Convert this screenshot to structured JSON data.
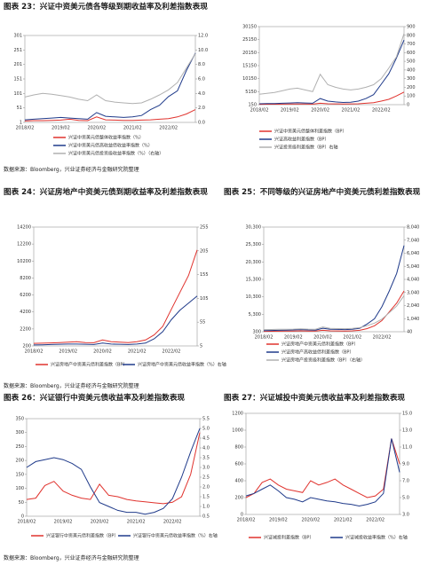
{
  "sources": [
    "数据来源：Bloomberg，兴业证券经济与金融研究院整理",
    "数据来源：Bloomberg，兴业证券经济与金融研究院整理",
    "数据来源：Bloomberg，兴业证券经济与金融研究院整理"
  ],
  "chart_data": [
    {
      "type": "line",
      "title": "图表 23：兴证中资美元债各等级到期收益率及利差指数表现",
      "categories": [
        "2018/02",
        null,
        null,
        null,
        "2019/02",
        null,
        null,
        null,
        "2020/02",
        null,
        null,
        null,
        "2021/02",
        null,
        null,
        null,
        "2022/02",
        null,
        null,
        null
      ],
      "ylim": [
        1,
        301
      ],
      "yticks": [
        1,
        51,
        101,
        151,
        201,
        251,
        301
      ],
      "y2lim": [
        0,
        12
      ],
      "y2ticks": [
        {
          "value": 0,
          "label": "0.0"
        },
        {
          "value": 2,
          "label": "2.0"
        },
        {
          "value": 4,
          "label": "4.0"
        },
        {
          "value": 6,
          "label": "6.0"
        },
        {
          "value": 8,
          "label": "8.0"
        },
        {
          "value": 10,
          "label": "10.0"
        },
        {
          "value": 12,
          "label": "12.0"
        }
      ],
      "series": [
        {
          "name": "兴证中资美元债整体收益率指数（%）",
          "color": "#e0322d",
          "values": [
            6,
            7,
            7,
            8,
            9,
            12,
            8,
            7,
            20,
            10,
            9,
            8,
            8,
            9,
            10,
            12,
            14,
            20,
            30,
            45
          ]
        },
        {
          "name": "兴证中资美元债高收益债收益率指数（%）",
          "color": "#1f3a8a",
          "values": [
            10,
            12,
            14,
            16,
            18,
            16,
            14,
            12,
            35,
            22,
            20,
            18,
            20,
            25,
            45,
            60,
            90,
            110,
            180,
            240
          ]
        },
        {
          "name": "兴证中资美元债投资级收益率指数（%）（右轴）",
          "color": "#b0b0b0",
          "axis": "y2",
          "values": [
            3.5,
            3.8,
            4.0,
            3.9,
            3.7,
            3.5,
            3.2,
            3.0,
            3.8,
            3.0,
            2.8,
            2.7,
            2.6,
            2.7,
            3.2,
            3.8,
            4.5,
            5.5,
            7.5,
            9.5
          ]
        }
      ]
    },
    {
      "type": "line",
      "categories": [
        "2018/02",
        null,
        null,
        null,
        "2019/02",
        null,
        null,
        null,
        "2020/02",
        null,
        null,
        null,
        "2021/02",
        null,
        null,
        null,
        "2022/02",
        null,
        null,
        null
      ],
      "ylim": [
        150,
        30150
      ],
      "yticks": [
        150,
        5150,
        10150,
        15150,
        20150,
        25150,
        30150
      ],
      "y2lim": [
        0,
        900
      ],
      "y2ticks": [
        0,
        100,
        200,
        300,
        400,
        500,
        600,
        700,
        800,
        900
      ],
      "series": [
        {
          "name": "兴证中资美元债整体利差指数（BP）",
          "color": "#e0322d",
          "values": [
            300,
            310,
            320,
            340,
            380,
            400,
            380,
            350,
            700,
            500,
            450,
            420,
            450,
            500,
            700,
            900,
            1500,
            2200,
            3500,
            5000
          ]
        },
        {
          "name": "兴证高收益利差指数（BP）",
          "color": "#1f3a8a",
          "values": [
            500,
            550,
            600,
            700,
            800,
            900,
            800,
            700,
            2500,
            1500,
            1200,
            1000,
            1100,
            1500,
            2500,
            4000,
            8000,
            12000,
            18000,
            25000
          ]
        },
        {
          "name": "兴证投资级利差指数（BP）右轴",
          "color": "#b0b0b0",
          "axis": "y2",
          "values": [
            120,
            130,
            140,
            160,
            180,
            190,
            170,
            150,
            350,
            230,
            200,
            180,
            170,
            180,
            200,
            230,
            300,
            420,
            550,
            820
          ]
        }
      ]
    },
    {
      "type": "line",
      "title": "图表 24：兴证房地产中资美元债到期收益率及利差指数表现",
      "categories": [
        "2018/02",
        null,
        null,
        null,
        "2019/02",
        null,
        null,
        null,
        "2020/02",
        null,
        null,
        null,
        "2021/02",
        null,
        null,
        null,
        "2022/02",
        null,
        null,
        null
      ],
      "ylim": [
        200,
        14200
      ],
      "yticks": [
        200,
        2200,
        4200,
        6200,
        8200,
        10200,
        12200,
        14200
      ],
      "y2lim": [
        5,
        255
      ],
      "y2ticks": [
        5,
        55,
        105,
        155,
        205,
        255
      ],
      "series": [
        {
          "name": "兴证房地产中资美元债利差指数（BP）",
          "color": "#e0322d",
          "values": [
            500,
            520,
            550,
            600,
            650,
            700,
            600,
            580,
            900,
            700,
            650,
            600,
            700,
            900,
            1500,
            2500,
            4500,
            6500,
            8500,
            11500
          ]
        },
        {
          "name": "兴证房地产中资美元债收益率指数（%）右轴",
          "color": "#1f3a8a",
          "axis": "y2",
          "values": [
            7,
            7.5,
            8,
            8.5,
            9,
            9,
            8.5,
            8,
            11,
            9,
            8.5,
            8,
            9,
            11,
            20,
            35,
            60,
            80,
            95,
            110
          ]
        }
      ]
    },
    {
      "type": "line",
      "title": "图表 25：不同等级的兴证房地产中资美元债利差指数表现",
      "categories": [
        "2018/02",
        null,
        null,
        null,
        "2019/02",
        null,
        null,
        null,
        "2020/02",
        null,
        null,
        null,
        "2021/02",
        null,
        null,
        null,
        "2022/02",
        null,
        null,
        null
      ],
      "ylim": [
        300,
        30300
      ],
      "yticks": [
        300,
        {
          "value": 5300,
          "label": "5,300"
        },
        {
          "value": 10300,
          "label": "10,300"
        },
        {
          "value": 15300,
          "label": "15,300"
        },
        {
          "value": 20300,
          "label": "20,300"
        },
        {
          "value": 25300,
          "label": "25,300"
        },
        {
          "value": 30300,
          "label": "30,300"
        }
      ],
      "y2lim": [
        40,
        8040
      ],
      "y2ticks": [
        40,
        {
          "value": 1040,
          "label": "1,040"
        },
        {
          "value": 2040,
          "label": "2,040"
        },
        {
          "value": 3040,
          "label": "3,040"
        },
        {
          "value": 4040,
          "label": "4,040"
        },
        {
          "value": 5040,
          "label": "5,040"
        },
        {
          "value": 6040,
          "label": "6,040"
        },
        {
          "value": 7040,
          "label": "7,040"
        },
        {
          "value": 8040,
          "label": "8,040"
        }
      ],
      "series": [
        {
          "name": "兴证房地产中资美元债利差指数（BP）",
          "color": "#e0322d",
          "values": [
            400,
            420,
            450,
            480,
            500,
            550,
            500,
            480,
            700,
            560,
            520,
            500,
            560,
            700,
            1200,
            2000,
            3500,
            6000,
            8500,
            12000
          ]
        },
        {
          "name": "兴证房地产高收益债利差指数（BP）",
          "color": "#1f3a8a",
          "values": [
            600,
            650,
            700,
            750,
            800,
            900,
            800,
            750,
            1300,
            1000,
            950,
            900,
            1000,
            1300,
            2500,
            4000,
            7500,
            12000,
            17000,
            25000
          ]
        },
        {
          "name": "兴证房地产投资级利差指数（BP）（右轴）",
          "color": "#b0b0b0",
          "axis": "y2",
          "values": [
            200,
            210,
            220,
            230,
            240,
            260,
            240,
            230,
            400,
            300,
            280,
            270,
            300,
            350,
            500,
            700,
            1000,
            1500,
            2000,
            2800
          ]
        }
      ]
    },
    {
      "type": "line",
      "title": "图表 26：兴证银行中资美元债收益率及利差指数表现",
      "categories": [
        "2018/02",
        null,
        null,
        null,
        "2019/02",
        null,
        null,
        null,
        "2020/02",
        null,
        null,
        null,
        "2021/02",
        null,
        null,
        null,
        "2022/02",
        null,
        null,
        null
      ],
      "ylim": [
        0,
        350
      ],
      "yticks": [
        0,
        50,
        100,
        150,
        200,
        250,
        300,
        350
      ],
      "y2lim": [
        0.5,
        5.5
      ],
      "y2ticks": [
        0.5,
        {
          "value": 1,
          "label": "1.0"
        },
        1.5,
        {
          "value": 2,
          "label": "2.0"
        },
        2.5,
        {
          "value": 3,
          "label": "3.0"
        },
        3.5,
        {
          "value": 4,
          "label": "4.0"
        },
        4.5,
        {
          "value": 5,
          "label": "5.0"
        },
        5.5
      ],
      "series": [
        {
          "name": "兴证银行中资美元债利差指数（BP）",
          "color": "#e0322d",
          "values": [
            60,
            65,
            110,
            125,
            90,
            75,
            65,
            60,
            115,
            75,
            70,
            60,
            55,
            52,
            48,
            45,
            50,
            70,
            150,
            300
          ]
        },
        {
          "name": "兴证银行中资美元债收益率指数（%）右轴",
          "color": "#1f3a8a",
          "axis": "y2",
          "values": [
            3.0,
            3.3,
            3.4,
            3.5,
            3.4,
            3.2,
            2.9,
            2.0,
            1.2,
            1.0,
            0.8,
            0.7,
            0.7,
            0.6,
            0.7,
            0.9,
            1.4,
            2.5,
            3.8,
            5.0
          ]
        }
      ]
    },
    {
      "type": "line",
      "title": "图表 27：兴证城投中资美元债收益率及利差指数表现",
      "categories": [
        "2018/02",
        null,
        null,
        null,
        "2019/02",
        null,
        null,
        null,
        "2020/02",
        null,
        null,
        null,
        "2021/02",
        null,
        null,
        null,
        "2022/02",
        null,
        null,
        null
      ],
      "ylim": [
        0,
        1200
      ],
      "yticks": [
        0,
        200,
        400,
        600,
        800,
        1000,
        1200
      ],
      "y2lim": [
        3,
        15
      ],
      "y2ticks": [
        {
          "value": 3,
          "label": "3.0"
        },
        {
          "value": 5,
          "label": "5.0"
        },
        {
          "value": 7,
          "label": "7.0"
        },
        {
          "value": 9,
          "label": "9.0"
        },
        {
          "value": 11,
          "label": "11.0"
        },
        {
          "value": 13,
          "label": "13.0"
        },
        {
          "value": 15,
          "label": "15.0"
        }
      ],
      "series": [
        {
          "name": "兴证城投利差指数（BP）",
          "color": "#e0322d",
          "values": [
            200,
            250,
            380,
            420,
            350,
            300,
            280,
            260,
            400,
            350,
            380,
            420,
            350,
            300,
            250,
            200,
            220,
            300,
            900,
            600
          ]
        },
        {
          "name": "兴证城投收益率指数（%）右轴",
          "color": "#1f3a8a",
          "axis": "y2",
          "values": [
            5.2,
            5.5,
            6.0,
            6.5,
            5.8,
            5.0,
            4.8,
            4.5,
            5.0,
            4.8,
            4.6,
            4.5,
            4.3,
            4.2,
            4.0,
            4.2,
            4.5,
            5.5,
            12,
            8
          ]
        }
      ]
    }
  ]
}
